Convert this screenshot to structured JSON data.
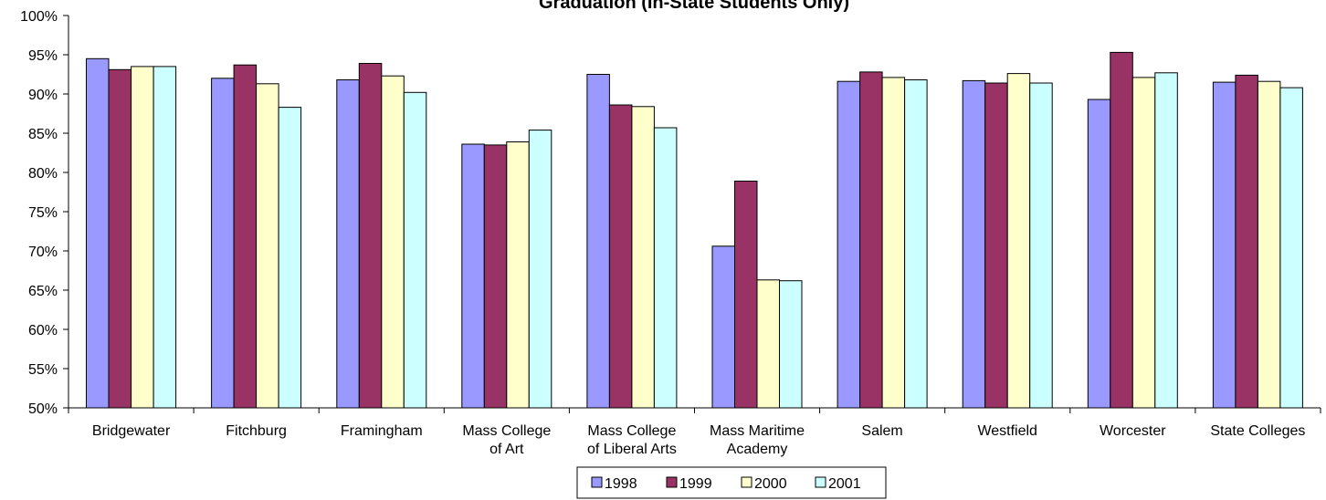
{
  "chart_data": {
    "type": "bar",
    "title": "Graduation (In-State Students Only)",
    "categories": [
      "Bridgewater",
      "Fitchburg",
      "Framingham",
      "Mass College of Art",
      "Mass College of Liberal Arts",
      "Mass Maritime Academy",
      "Salem",
      "Westfield",
      "Worcester",
      "State Colleges"
    ],
    "category_lines": [
      [
        "Bridgewater"
      ],
      [
        "Fitchburg"
      ],
      [
        "Framingham"
      ],
      [
        "Mass College",
        "of Art"
      ],
      [
        "Mass College",
        "of Liberal Arts"
      ],
      [
        "Mass Maritime",
        "Academy"
      ],
      [
        "Salem"
      ],
      [
        "Westfield"
      ],
      [
        "Worcester"
      ],
      [
        "State Colleges"
      ]
    ],
    "series": [
      {
        "name": "1998",
        "color": "#9999FF",
        "values": [
          94.5,
          92.0,
          91.8,
          83.6,
          92.5,
          70.6,
          91.6,
          91.7,
          89.3,
          91.5
        ]
      },
      {
        "name": "1999",
        "color": "#993366",
        "values": [
          93.1,
          93.7,
          93.9,
          83.5,
          88.6,
          78.9,
          92.8,
          91.4,
          95.3,
          92.4
        ]
      },
      {
        "name": "2000",
        "color": "#FFFFCC",
        "values": [
          93.5,
          91.3,
          92.3,
          83.9,
          88.4,
          66.3,
          92.1,
          92.6,
          92.1,
          91.6
        ]
      },
      {
        "name": "2001",
        "color": "#CCFFFF",
        "values": [
          93.5,
          88.3,
          90.2,
          85.4,
          85.7,
          66.2,
          91.8,
          91.4,
          92.7,
          90.8
        ]
      }
    ],
    "ylim": [
      50,
      100
    ],
    "y_ticks": [
      "50%",
      "55%",
      "60%",
      "65%",
      "70%",
      "75%",
      "80%",
      "85%",
      "90%",
      "95%",
      "100%"
    ],
    "xlabel": "",
    "ylabel": "",
    "grid": false,
    "legend_position": "bottom"
  }
}
